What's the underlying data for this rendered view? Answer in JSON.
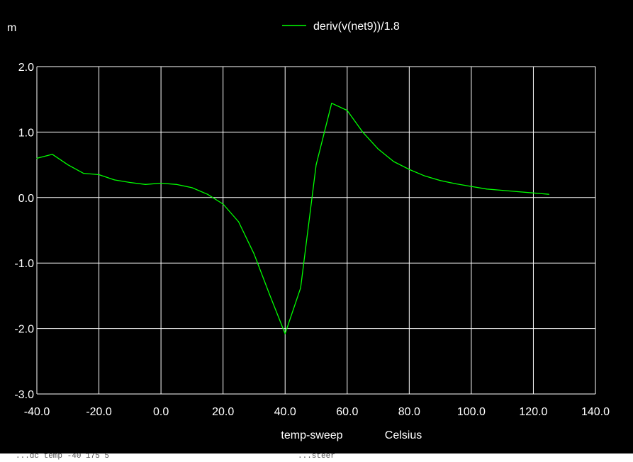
{
  "window": {
    "background": "#000000",
    "grid_color": "#ffffff",
    "trace_color": "#00ff00"
  },
  "bottom_strip": {
    "left_text": "...dc temp -40 175 5",
    "mid_text": "...steer"
  },
  "chart_data": {
    "type": "line",
    "unit_prefix": "m",
    "xlabel": "temp-sweep",
    "xunit": "Celsius",
    "xlim": [
      -40,
      140
    ],
    "ylim": [
      -3,
      2
    ],
    "x_ticks": [
      -40,
      -20,
      0,
      20,
      40,
      60,
      80,
      100,
      120,
      140
    ],
    "x_tick_labels": [
      "-40.0",
      "-20.0",
      "0.0",
      "20.0",
      "40.0",
      "60.0",
      "80.0",
      "100.0",
      "120.0",
      "140.0"
    ],
    "y_ticks": [
      2,
      1,
      0,
      -1,
      -2,
      -3
    ],
    "y_tick_labels": [
      "2.0",
      "1.0",
      "0.0",
      "-1.0",
      "-2.0",
      "-3.0"
    ],
    "grid": true,
    "legend_position": "top-center",
    "series": [
      {
        "name": "deriv(v(net9))/1.8",
        "color": "#00ff00",
        "x": [
          -40,
          -35,
          -30,
          -25,
          -20,
          -15,
          -10,
          -5,
          0,
          5,
          10,
          15,
          20,
          25,
          30,
          35,
          40,
          45,
          50,
          55,
          60,
          65,
          70,
          75,
          80,
          85,
          90,
          95,
          100,
          105,
          110,
          115,
          120,
          125
        ],
        "y": [
          0.6,
          0.66,
          0.5,
          0.37,
          0.35,
          0.27,
          0.23,
          0.2,
          0.22,
          0.2,
          0.15,
          0.05,
          -0.1,
          -0.37,
          -0.86,
          -1.48,
          -2.08,
          -1.38,
          0.5,
          1.44,
          1.33,
          1.0,
          0.74,
          0.55,
          0.43,
          0.33,
          0.26,
          0.21,
          0.17,
          0.13,
          0.11,
          0.09,
          0.07,
          0.05
        ]
      }
    ]
  }
}
